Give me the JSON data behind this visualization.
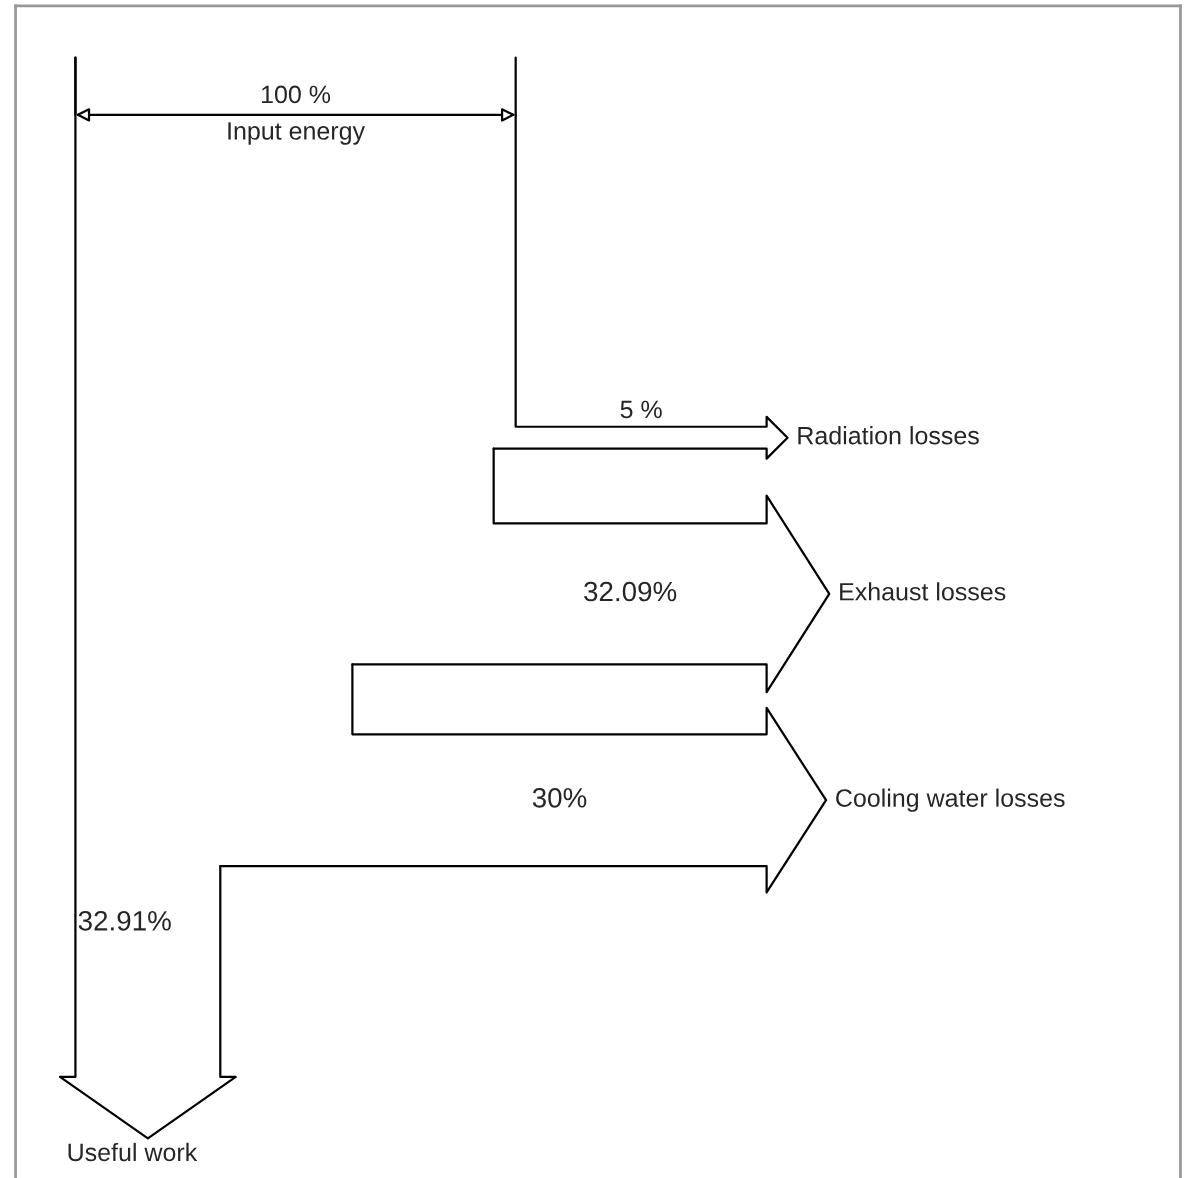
{
  "chart_data": {
    "type": "other",
    "categories": [
      "Input energy",
      "Radiation losses",
      "Exhaust losses",
      "Cooling water losses",
      "Useful work"
    ],
    "values": [
      100,
      5,
      32.09,
      30,
      32.91
    ],
    "value_labels": [
      "100 %",
      "5 %",
      "32.09%",
      "30%",
      "32.91%"
    ]
  }
}
